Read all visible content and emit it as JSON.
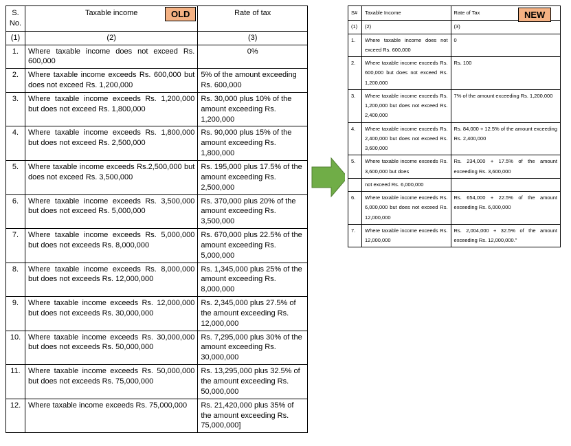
{
  "badges": {
    "old": "OLD",
    "new": "NEW"
  },
  "colors": {
    "badge_bg": "#f4b183",
    "badge_border": "#000000",
    "arrow_fill": "#70ad47",
    "arrow_stroke": "#507e32",
    "table_border": "#000000",
    "background": "#ffffff"
  },
  "old_table": {
    "headers": {
      "c1": "S. No.",
      "c2": "Taxable income",
      "c3": "Rate of tax"
    },
    "subheaders": {
      "c1": "(1)",
      "c2": "(2)",
      "c3": "(3)"
    },
    "rows": [
      {
        "n": "1.",
        "ti": "Where taxable income does not exceed Rs. 600,000",
        "rt": "0%"
      },
      {
        "n": "2.",
        "ti": "Where taxable income exceeds Rs. 600,000 but does not exceed Rs. 1,200,000",
        "rt": "5% of the amount exceeding Rs. 600,000"
      },
      {
        "n": "3.",
        "ti": "Where taxable income exceeds Rs. 1,200,000 but does not exceed Rs. 1,800,000",
        "rt": "Rs. 30,000 plus 10% of the amount exceeding Rs. 1,200,000"
      },
      {
        "n": "4.",
        "ti": "Where taxable income exceeds Rs. 1,800,000 but does not exceed Rs. 2,500,000",
        "rt": "Rs. 90,000 plus 15% of the amount exceeding Rs. 1,800,000"
      },
      {
        "n": "5.",
        "ti": "Where taxable income exceeds Rs.2,500,000 but does not exceed Rs. 3,500,000",
        "rt": "Rs. 195,000 plus 17.5% of the amount exceeding Rs. 2,500,000"
      },
      {
        "n": "6.",
        "ti": "Where taxable income exceeds Rs. 3,500,000 but does not exceed Rs. 5,000,000",
        "rt": "Rs. 370,000 plus 20% of the amount exceeding Rs. 3,500,000"
      },
      {
        "n": "7.",
        "ti": "Where taxable income exceeds Rs. 5,000,000 but does not exceeds Rs. 8,000,000",
        "rt": "Rs. 670,000 plus 22.5% of the amount exceeding Rs. 5,000,000"
      },
      {
        "n": "8.",
        "ti": "Where taxable income exceeds Rs. 8,000,000 but does not exceeds Rs. 12,000,000",
        "rt": "Rs. 1,345,000 plus 25% of the amount exceeding Rs. 8,000,000"
      },
      {
        "n": "9.",
        "ti": "Where taxable income exceeds Rs. 12,000,000 but does not exceeds Rs. 30,000,000",
        "rt": "Rs. 2,345,000 plus 27.5% of the amount exceeding Rs. 12,000,000"
      },
      {
        "n": "10.",
        "ti": "Where taxable income exceeds Rs. 30,000,000 but does not exceeds Rs. 50,000,000",
        "rt": "Rs. 7,295,000 plus 30% of the amount exceeding Rs. 30,000,000"
      },
      {
        "n": "11.",
        "ti": "Where taxable income exceeds Rs. 50,000,000 but does not exceeds Rs. 75,000,000",
        "rt": "Rs. 13,295,000 plus 32.5% of the amount exceeding Rs. 50,000,000"
      },
      {
        "n": "12.",
        "ti": "Where taxable income exceeds Rs. 75,000,000",
        "rt": "Rs. 21,420,000 plus 35% of the amount exceeding Rs. 75,000,000]"
      }
    ]
  },
  "new_table": {
    "headers": {
      "c1": "S#",
      "c2": "Taxable Income",
      "c3": "Rate of Tax"
    },
    "subheaders": {
      "c1": "(1)",
      "c2": "(2)",
      "c3": "(3)"
    },
    "rows": [
      {
        "n": "1.",
        "ti": "Where taxable income does not exceed Rs. 600,000",
        "rt": "0"
      },
      {
        "n": "2.",
        "ti": "Where taxable income exceeds Rs. 600,000 but does not exceed Rs. 1,200,000",
        "rt": "Rs. 100"
      },
      {
        "n": "3.",
        "ti": "Where taxable income exceeds Rs. 1,200,000 but does not exceed Rs. 2,400,000",
        "rt": "7% of the amount exceeding Rs. 1,200,000"
      },
      {
        "n": "4.",
        "ti": "Where taxable income exceeds Rs. 2,400,000 but does not exceed Rs. 3,600,000",
        "rt": "Rs. 84,000 + 12.5% of the amount exceeding Rs. 2,400,000"
      },
      {
        "n": "5.",
        "ti": "Where taxable income exceeds Rs. 3,600,000 but does",
        "rt": "Rs. 234,000 + 17.5% of the amount exceeding Rs. 3,600,000"
      },
      {
        "n": "",
        "ti": "not exceed Rs. 6,000,000",
        "rt": ""
      },
      {
        "n": "6.",
        "ti": "Where taxable income exceeds Rs. 6,000,000 but does not exceed Rs. 12,000,000",
        "rt": "Rs. 654,000 + 22.5% of the amount exceeding Rs. 6,000,000"
      },
      {
        "n": "7.",
        "ti": "Where taxable income exceeds Rs. 12,000,000",
        "rt": "Rs. 2,004,000 + 32.5% of the amount exceeding Rs. 12,000,000.\""
      }
    ]
  }
}
